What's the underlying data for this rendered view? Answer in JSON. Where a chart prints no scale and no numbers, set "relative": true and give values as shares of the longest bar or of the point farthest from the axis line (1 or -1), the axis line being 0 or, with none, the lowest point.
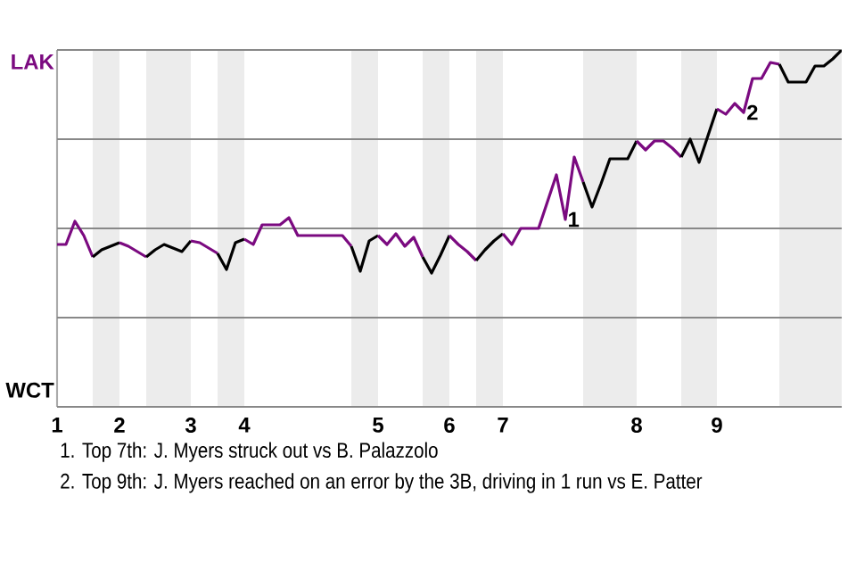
{
  "chart_data": {
    "type": "line",
    "categories": [
      "1",
      null,
      null,
      null,
      null,
      null,
      null,
      "2",
      null,
      null,
      null,
      null,
      null,
      null,
      null,
      "3",
      null,
      null,
      null,
      null,
      null,
      "4",
      null,
      null,
      null,
      null,
      null,
      null,
      null,
      null,
      null,
      null,
      null,
      null,
      null,
      null,
      "5",
      null,
      null,
      null,
      null,
      null,
      null,
      null,
      "6",
      null,
      null,
      null,
      null,
      null,
      "7",
      null,
      null,
      null,
      null,
      null,
      null,
      null,
      null,
      null,
      null,
      null,
      null,
      null,
      null,
      "8",
      null,
      null,
      null,
      null,
      null,
      null,
      null,
      null,
      "9",
      null,
      null,
      null,
      null,
      null,
      null,
      null,
      null,
      null,
      null,
      null,
      null,
      null,
      null
    ],
    "relative": true,
    "ref_lines": [
      {
        "axis": "y",
        "value": 1,
        "color": "#888888"
      },
      {
        "axis": "y",
        "value": 0.5,
        "color": "#888888"
      },
      {
        "axis": "y",
        "value": 0,
        "color": "#888888"
      },
      {
        "axis": "y",
        "value": -0.5,
        "color": "#888888"
      },
      {
        "axis": "y",
        "value": -1,
        "color": "#888888"
      }
    ],
    "series": [
      {
        "color": "#7b0a80",
        "values": [
          -0.09,
          -0.09,
          0.04,
          -0.04,
          -0.16,
          null,
          null,
          null,
          null,
          null,
          null,
          null,
          null,
          null,
          null,
          null,
          null,
          null,
          null,
          null,
          null,
          null,
          null,
          null,
          null,
          null,
          null,
          null,
          null,
          null,
          null,
          null,
          null,
          null,
          null,
          null,
          null,
          null,
          null,
          null,
          null,
          null,
          null,
          null,
          null,
          null,
          null,
          null,
          null,
          null,
          null,
          null,
          null,
          null,
          null,
          null,
          null,
          null,
          null,
          null,
          null,
          null,
          null,
          null,
          null,
          null,
          null,
          null,
          null,
          null,
          null,
          null,
          null,
          null,
          null,
          null,
          null,
          null,
          null,
          null,
          null,
          null,
          null,
          null,
          null,
          null,
          null,
          null,
          null
        ]
      },
      {
        "color": "#000000",
        "values": [
          null,
          null,
          null,
          null,
          -0.16,
          -0.12,
          -0.1,
          -0.08,
          null,
          null,
          null,
          null,
          null,
          null,
          null,
          null,
          null,
          null,
          null,
          null,
          null,
          null,
          null,
          null,
          null,
          null,
          null,
          null,
          null,
          null,
          null,
          null,
          null,
          null,
          null,
          null,
          null,
          null,
          null,
          null,
          null,
          null,
          null,
          null,
          null,
          null,
          null,
          null,
          null,
          null,
          null,
          null,
          null,
          null,
          null,
          null,
          null,
          null,
          null,
          null,
          null,
          null,
          null,
          null,
          null,
          null,
          null,
          null,
          null,
          null,
          null,
          null,
          null,
          null,
          null,
          null,
          null,
          null,
          null,
          null,
          null,
          null,
          null,
          null,
          null,
          null,
          null,
          null,
          null
        ]
      },
      {
        "color": "#7b0a80",
        "values": [
          null,
          null,
          null,
          null,
          null,
          null,
          null,
          -0.08,
          -0.1,
          -0.13,
          -0.16,
          null,
          null,
          null,
          null,
          null,
          null,
          null,
          null,
          null,
          null,
          null,
          null,
          null,
          null,
          null,
          null,
          null,
          null,
          null,
          null,
          null,
          null,
          null,
          null,
          null,
          null,
          null,
          null,
          null,
          null,
          null,
          null,
          null,
          null,
          null,
          null,
          null,
          null,
          null,
          null,
          null,
          null,
          null,
          null,
          null,
          null,
          null,
          null,
          null,
          null,
          null,
          null,
          null,
          null,
          null,
          null,
          null,
          null,
          null,
          null,
          null,
          null,
          null,
          null,
          null,
          null,
          null,
          null,
          null,
          null,
          null,
          null,
          null,
          null,
          null,
          null,
          null,
          null
        ]
      },
      {
        "color": "#000000",
        "values": [
          null,
          null,
          null,
          null,
          null,
          null,
          null,
          null,
          null,
          null,
          -0.16,
          -0.12,
          -0.09,
          -0.11,
          -0.13,
          -0.07,
          null,
          null,
          null,
          null,
          null,
          null,
          null,
          null,
          null,
          null,
          null,
          null,
          null,
          null,
          null,
          null,
          null,
          null,
          null,
          null,
          null,
          null,
          null,
          null,
          null,
          null,
          null,
          null,
          null,
          null,
          null,
          null,
          null,
          null,
          null,
          null,
          null,
          null,
          null,
          null,
          null,
          null,
          null,
          null,
          null,
          null,
          null,
          null,
          null,
          null,
          null,
          null,
          null,
          null,
          null,
          null,
          null,
          null,
          null,
          null,
          null,
          null,
          null,
          null,
          null,
          null,
          null,
          null,
          null,
          null,
          null,
          null,
          null
        ]
      },
      {
        "color": "#7b0a80",
        "values": [
          null,
          null,
          null,
          null,
          null,
          null,
          null,
          null,
          null,
          null,
          null,
          null,
          null,
          null,
          null,
          -0.07,
          -0.08,
          -0.11,
          -0.14,
          null,
          null,
          null,
          null,
          null,
          null,
          null,
          null,
          null,
          null,
          null,
          null,
          null,
          null,
          null,
          null,
          null,
          null,
          null,
          null,
          null,
          null,
          null,
          null,
          null,
          null,
          null,
          null,
          null,
          null,
          null,
          null,
          null,
          null,
          null,
          null,
          null,
          null,
          null,
          null,
          null,
          null,
          null,
          null,
          null,
          null,
          null,
          null,
          null,
          null,
          null,
          null,
          null,
          null,
          null,
          null,
          null,
          null,
          null,
          null,
          null,
          null,
          null,
          null,
          null,
          null,
          null,
          null,
          null,
          null
        ]
      },
      {
        "color": "#000000",
        "values": [
          null,
          null,
          null,
          null,
          null,
          null,
          null,
          null,
          null,
          null,
          null,
          null,
          null,
          null,
          null,
          null,
          null,
          null,
          -0.14,
          -0.23,
          -0.08,
          -0.06,
          null,
          null,
          null,
          null,
          null,
          null,
          null,
          null,
          null,
          null,
          null,
          null,
          null,
          null,
          null,
          null,
          null,
          null,
          null,
          null,
          null,
          null,
          null,
          null,
          null,
          null,
          null,
          null,
          null,
          null,
          null,
          null,
          null,
          null,
          null,
          null,
          null,
          null,
          null,
          null,
          null,
          null,
          null,
          null,
          null,
          null,
          null,
          null,
          null,
          null,
          null,
          null,
          null,
          null,
          null,
          null,
          null,
          null,
          null,
          null,
          null,
          null,
          null,
          null,
          null,
          null,
          null
        ]
      },
      {
        "color": "#7b0a80",
        "values": [
          null,
          null,
          null,
          null,
          null,
          null,
          null,
          null,
          null,
          null,
          null,
          null,
          null,
          null,
          null,
          null,
          null,
          null,
          null,
          null,
          null,
          -0.06,
          -0.09,
          0.02,
          0.02,
          0.02,
          0.06,
          -0.04,
          -0.04,
          -0.04,
          -0.04,
          -0.04,
          -0.04,
          -0.1,
          null,
          null,
          null,
          null,
          null,
          null,
          null,
          null,
          null,
          null,
          null,
          null,
          null,
          null,
          null,
          null,
          null,
          null,
          null,
          null,
          null,
          null,
          null,
          null,
          null,
          null,
          null,
          null,
          null,
          null,
          null,
          null,
          null,
          null,
          null,
          null,
          null,
          null,
          null,
          null,
          null,
          null,
          null,
          null,
          null,
          null,
          null,
          null,
          null,
          null,
          null,
          null,
          null,
          null,
          null
        ]
      },
      {
        "color": "#000000",
        "values": [
          null,
          null,
          null,
          null,
          null,
          null,
          null,
          null,
          null,
          null,
          null,
          null,
          null,
          null,
          null,
          null,
          null,
          null,
          null,
          null,
          null,
          null,
          null,
          null,
          null,
          null,
          null,
          null,
          null,
          null,
          null,
          null,
          null,
          -0.1,
          -0.24,
          -0.07,
          -0.04,
          null,
          null,
          null,
          null,
          null,
          null,
          null,
          null,
          null,
          null,
          null,
          null,
          null,
          null,
          null,
          null,
          null,
          null,
          null,
          null,
          null,
          null,
          null,
          null,
          null,
          null,
          null,
          null,
          null,
          null,
          null,
          null,
          null,
          null,
          null,
          null,
          null,
          null,
          null,
          null,
          null,
          null,
          null,
          null,
          null,
          null,
          null,
          null,
          null,
          null,
          null,
          null
        ]
      },
      {
        "color": "#7b0a80",
        "values": [
          null,
          null,
          null,
          null,
          null,
          null,
          null,
          null,
          null,
          null,
          null,
          null,
          null,
          null,
          null,
          null,
          null,
          null,
          null,
          null,
          null,
          null,
          null,
          null,
          null,
          null,
          null,
          null,
          null,
          null,
          null,
          null,
          null,
          null,
          null,
          null,
          -0.04,
          -0.09,
          -0.03,
          -0.1,
          -0.05,
          -0.16,
          null,
          null,
          null,
          null,
          null,
          null,
          null,
          null,
          null,
          null,
          null,
          null,
          null,
          null,
          null,
          null,
          null,
          null,
          null,
          null,
          null,
          null,
          null,
          null,
          null,
          null,
          null,
          null,
          null,
          null,
          null,
          null,
          null,
          null,
          null,
          null,
          null,
          null,
          null,
          null,
          null,
          null,
          null,
          null,
          null,
          null,
          null
        ]
      },
      {
        "color": "#000000",
        "values": [
          null,
          null,
          null,
          null,
          null,
          null,
          null,
          null,
          null,
          null,
          null,
          null,
          null,
          null,
          null,
          null,
          null,
          null,
          null,
          null,
          null,
          null,
          null,
          null,
          null,
          null,
          null,
          null,
          null,
          null,
          null,
          null,
          null,
          null,
          null,
          null,
          null,
          null,
          null,
          null,
          null,
          -0.16,
          -0.25,
          -0.15,
          -0.04,
          null,
          null,
          null,
          null,
          null,
          null,
          null,
          null,
          null,
          null,
          null,
          null,
          null,
          null,
          null,
          null,
          null,
          null,
          null,
          null,
          null,
          null,
          null,
          null,
          null,
          null,
          null,
          null,
          null,
          null,
          null,
          null,
          null,
          null,
          null,
          null,
          null,
          null,
          null,
          null,
          null,
          null,
          null,
          null
        ]
      },
      {
        "color": "#7b0a80",
        "values": [
          null,
          null,
          null,
          null,
          null,
          null,
          null,
          null,
          null,
          null,
          null,
          null,
          null,
          null,
          null,
          null,
          null,
          null,
          null,
          null,
          null,
          null,
          null,
          null,
          null,
          null,
          null,
          null,
          null,
          null,
          null,
          null,
          null,
          null,
          null,
          null,
          null,
          null,
          null,
          null,
          null,
          null,
          null,
          null,
          -0.04,
          -0.09,
          -0.13,
          -0.18,
          null,
          null,
          null,
          null,
          null,
          null,
          null,
          null,
          null,
          null,
          null,
          null,
          null,
          null,
          null,
          null,
          null,
          null,
          null,
          null,
          null,
          null,
          null,
          null,
          null,
          null,
          null,
          null,
          null,
          null,
          null,
          null,
          null,
          null,
          null,
          null,
          null,
          null,
          null,
          null,
          null
        ]
      },
      {
        "color": "#000000",
        "values": [
          null,
          null,
          null,
          null,
          null,
          null,
          null,
          null,
          null,
          null,
          null,
          null,
          null,
          null,
          null,
          null,
          null,
          null,
          null,
          null,
          null,
          null,
          null,
          null,
          null,
          null,
          null,
          null,
          null,
          null,
          null,
          null,
          null,
          null,
          null,
          null,
          null,
          null,
          null,
          null,
          null,
          null,
          null,
          null,
          null,
          null,
          null,
          -0.18,
          -0.12,
          -0.07,
          -0.03,
          null,
          null,
          null,
          null,
          null,
          null,
          null,
          null,
          null,
          null,
          null,
          null,
          null,
          null,
          null,
          null,
          null,
          null,
          null,
          null,
          null,
          null,
          null,
          null,
          null,
          null,
          null,
          null,
          null,
          null,
          null,
          null,
          null,
          null,
          null,
          null,
          null,
          null
        ]
      },
      {
        "color": "#7b0a80",
        "values": [
          null,
          null,
          null,
          null,
          null,
          null,
          null,
          null,
          null,
          null,
          null,
          null,
          null,
          null,
          null,
          null,
          null,
          null,
          null,
          null,
          null,
          null,
          null,
          null,
          null,
          null,
          null,
          null,
          null,
          null,
          null,
          null,
          null,
          null,
          null,
          null,
          null,
          null,
          null,
          null,
          null,
          null,
          null,
          null,
          null,
          null,
          null,
          null,
          null,
          null,
          -0.03,
          -0.09,
          0,
          0,
          0,
          0.15,
          0.3,
          0.05,
          0.4,
          0.26,
          null,
          null,
          null,
          null,
          null,
          null,
          null,
          null,
          null,
          null,
          null,
          null,
          null,
          null,
          null,
          null,
          null,
          null,
          null,
          null,
          null,
          null,
          null,
          null,
          null,
          null,
          null,
          null,
          null
        ]
      },
      {
        "color": "#000000",
        "values": [
          null,
          null,
          null,
          null,
          null,
          null,
          null,
          null,
          null,
          null,
          null,
          null,
          null,
          null,
          null,
          null,
          null,
          null,
          null,
          null,
          null,
          null,
          null,
          null,
          null,
          null,
          null,
          null,
          null,
          null,
          null,
          null,
          null,
          null,
          null,
          null,
          null,
          null,
          null,
          null,
          null,
          null,
          null,
          null,
          null,
          null,
          null,
          null,
          null,
          null,
          null,
          null,
          null,
          null,
          null,
          null,
          null,
          null,
          null,
          0.26,
          0.12,
          0.25,
          0.39,
          0.39,
          0.39,
          0.49,
          null,
          null,
          null,
          null,
          null,
          null,
          null,
          null,
          null,
          null,
          null,
          null,
          null,
          null,
          null,
          null,
          null,
          null,
          null,
          null,
          null,
          null,
          null
        ]
      },
      {
        "color": "#7b0a80",
        "values": [
          null,
          null,
          null,
          null,
          null,
          null,
          null,
          null,
          null,
          null,
          null,
          null,
          null,
          null,
          null,
          null,
          null,
          null,
          null,
          null,
          null,
          null,
          null,
          null,
          null,
          null,
          null,
          null,
          null,
          null,
          null,
          null,
          null,
          null,
          null,
          null,
          null,
          null,
          null,
          null,
          null,
          null,
          null,
          null,
          null,
          null,
          null,
          null,
          null,
          null,
          null,
          null,
          null,
          null,
          null,
          null,
          null,
          null,
          null,
          null,
          null,
          null,
          null,
          null,
          null,
          0.49,
          0.44,
          0.49,
          0.49,
          0.45,
          0.4,
          null,
          null,
          null,
          null,
          null,
          null,
          null,
          null,
          null,
          null,
          null,
          null,
          null,
          null,
          null,
          null,
          null,
          null
        ]
      },
      {
        "color": "#000000",
        "values": [
          null,
          null,
          null,
          null,
          null,
          null,
          null,
          null,
          null,
          null,
          null,
          null,
          null,
          null,
          null,
          null,
          null,
          null,
          null,
          null,
          null,
          null,
          null,
          null,
          null,
          null,
          null,
          null,
          null,
          null,
          null,
          null,
          null,
          null,
          null,
          null,
          null,
          null,
          null,
          null,
          null,
          null,
          null,
          null,
          null,
          null,
          null,
          null,
          null,
          null,
          null,
          null,
          null,
          null,
          null,
          null,
          null,
          null,
          null,
          null,
          null,
          null,
          null,
          null,
          null,
          null,
          null,
          null,
          null,
          null,
          0.4,
          0.5,
          0.37,
          0.52,
          0.67,
          null,
          null,
          null,
          null,
          null,
          null,
          null,
          null,
          null,
          null,
          null,
          null,
          null,
          null
        ]
      },
      {
        "color": "#7b0a80",
        "values": [
          null,
          null,
          null,
          null,
          null,
          null,
          null,
          null,
          null,
          null,
          null,
          null,
          null,
          null,
          null,
          null,
          null,
          null,
          null,
          null,
          null,
          null,
          null,
          null,
          null,
          null,
          null,
          null,
          null,
          null,
          null,
          null,
          null,
          null,
          null,
          null,
          null,
          null,
          null,
          null,
          null,
          null,
          null,
          null,
          null,
          null,
          null,
          null,
          null,
          null,
          null,
          null,
          null,
          null,
          null,
          null,
          null,
          null,
          null,
          null,
          null,
          null,
          null,
          null,
          null,
          null,
          null,
          null,
          null,
          null,
          null,
          null,
          null,
          null,
          0.67,
          0.64,
          0.7,
          0.65,
          0.84,
          0.84,
          0.93,
          0.92,
          null,
          null,
          null,
          null,
          null,
          null,
          null
        ]
      },
      {
        "color": "#000000",
        "values": [
          null,
          null,
          null,
          null,
          null,
          null,
          null,
          null,
          null,
          null,
          null,
          null,
          null,
          null,
          null,
          null,
          null,
          null,
          null,
          null,
          null,
          null,
          null,
          null,
          null,
          null,
          null,
          null,
          null,
          null,
          null,
          null,
          null,
          null,
          null,
          null,
          null,
          null,
          null,
          null,
          null,
          null,
          null,
          null,
          null,
          null,
          null,
          null,
          null,
          null,
          null,
          null,
          null,
          null,
          null,
          null,
          null,
          null,
          null,
          null,
          null,
          null,
          null,
          null,
          null,
          null,
          null,
          null,
          null,
          null,
          null,
          null,
          null,
          null,
          null,
          null,
          null,
          null,
          null,
          null,
          null,
          0.92,
          0.82,
          0.82,
          0.82,
          0.91,
          0.91,
          0.95,
          1.0
        ]
      }
    ],
    "annotations": [
      "LAK",
      "WCT",
      "1",
      "2",
      "1. Top 7th: J. Myers struck out vs B. Palazzolo",
      "2. Top 9th: J. Myers reached on an error by the 3B, driving in 1 run vs E. Patter"
    ]
  }
}
